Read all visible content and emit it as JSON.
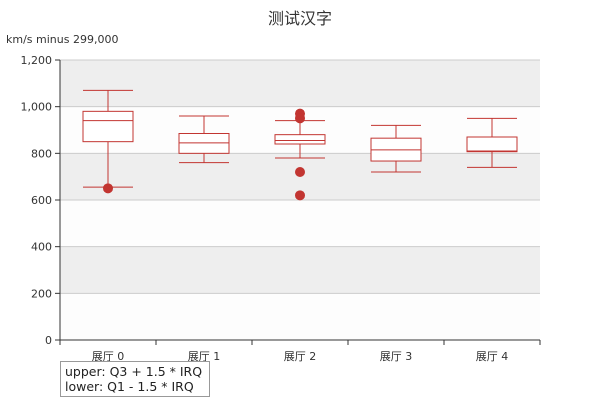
{
  "chart_data": {
    "type": "boxplot",
    "title": "测试汉字",
    "ylabel": "km/s minus 299,000",
    "xlabel": "",
    "ylim": [
      0,
      1200
    ],
    "yticks": [
      0,
      200,
      400,
      600,
      800,
      1000,
      1200
    ],
    "ytick_labels": [
      "0",
      "200",
      "400",
      "600",
      "800",
      "1,000",
      "1,200"
    ],
    "categories": [
      "展厅 0",
      "展厅 1",
      "展厅 2",
      "展厅 3",
      "展厅 4"
    ],
    "boxes": [
      {
        "low": 655,
        "q1": 850,
        "median": 940,
        "q3": 980,
        "high": 1070
      },
      {
        "low": 760,
        "q1": 800,
        "median": 845,
        "q3": 885,
        "high": 960
      },
      {
        "low": 780,
        "q1": 840,
        "median": 855,
        "q3": 880,
        "high": 940
      },
      {
        "low": 720,
        "q1": 767,
        "median": 815,
        "q3": 865,
        "high": 920
      },
      {
        "low": 740,
        "q1": 807,
        "median": 810,
        "q3": 870,
        "high": 950
      }
    ],
    "outliers": [
      {
        "category": 0,
        "value": 650
      },
      {
        "category": 2,
        "value": 970
      },
      {
        "category": 2,
        "value": 950
      },
      {
        "category": 2,
        "value": 720
      },
      {
        "category": 2,
        "value": 620
      }
    ],
    "band_colors": [
      "#eeeeee",
      "#fdfdfd"
    ],
    "box_color": "#c23531",
    "outlier_color": "#c23531",
    "grid": true,
    "legend": "none"
  },
  "note": {
    "line1": "upper: Q3 + 1.5 * IRQ",
    "line2": "lower: Q1 - 1.5 * IRQ"
  }
}
